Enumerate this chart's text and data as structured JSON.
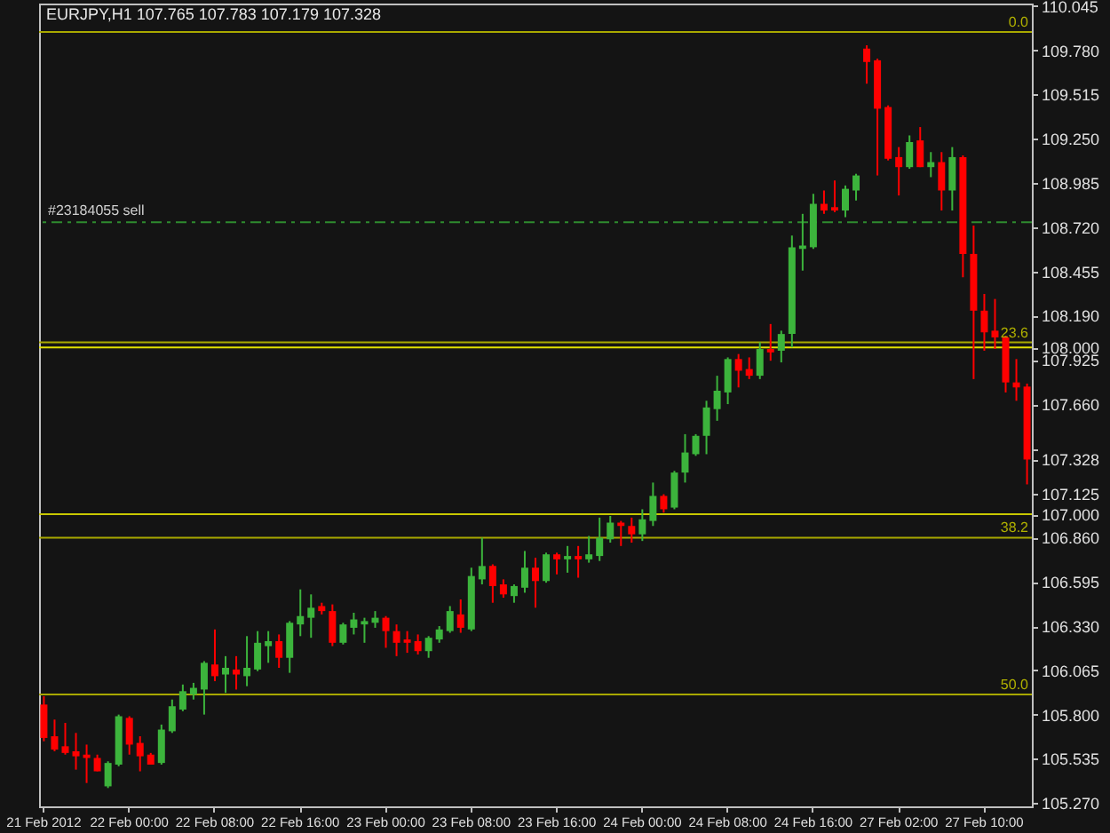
{
  "chart_data": {
    "type": "candlestick",
    "title": "EURJPY,H1  107.765 107.783 107.179 107.328",
    "categories": [
      "21 Feb 2012",
      null,
      null,
      null,
      null,
      null,
      null,
      null,
      "22 Feb 00:00",
      null,
      null,
      null,
      null,
      null,
      null,
      null,
      "22 Feb 08:00",
      null,
      null,
      null,
      null,
      null,
      null,
      null,
      "22 Feb 16:00",
      null,
      null,
      null,
      null,
      null,
      null,
      null,
      "23 Feb 00:00",
      null,
      null,
      null,
      null,
      null,
      null,
      null,
      "23 Feb 08:00",
      null,
      null,
      null,
      null,
      null,
      null,
      null,
      "23 Feb 16:00",
      null,
      null,
      null,
      null,
      null,
      null,
      null,
      "24 Feb 00:00",
      null,
      null,
      null,
      null,
      null,
      null,
      null,
      "24 Feb 08:00",
      null,
      null,
      null,
      null,
      null,
      null,
      null,
      "24 Feb 16:00",
      null,
      null,
      null,
      null,
      null,
      null,
      null,
      "27 Feb 02:00",
      null,
      null,
      null,
      null,
      null,
      null,
      null,
      "27 Feb 10:00",
      null,
      null,
      null,
      null
    ],
    "ohlc": [
      [
        105.86,
        105.91,
        105.64,
        105.66
      ],
      [
        105.67,
        105.77,
        105.58,
        105.59
      ],
      [
        105.61,
        105.75,
        105.56,
        105.57
      ],
      [
        105.58,
        105.69,
        105.47,
        105.55
      ],
      [
        105.56,
        105.62,
        105.39,
        105.54
      ],
      [
        105.54,
        105.56,
        105.46,
        105.46
      ],
      [
        105.37,
        105.52,
        105.36,
        105.51
      ],
      [
        105.5,
        105.8,
        105.49,
        105.79
      ],
      [
        105.78,
        105.79,
        105.56,
        105.62
      ],
      [
        105.63,
        105.67,
        105.46,
        105.55
      ],
      [
        105.56,
        105.57,
        105.5,
        105.5
      ],
      [
        105.51,
        105.74,
        105.5,
        105.71
      ],
      [
        105.7,
        105.89,
        105.69,
        105.85
      ],
      [
        105.83,
        105.98,
        105.82,
        105.94
      ],
      [
        105.92,
        105.99,
        105.89,
        105.96
      ],
      [
        105.95,
        106.12,
        105.8,
        106.11
      ],
      [
        106.1,
        106.31,
        106.0,
        106.03
      ],
      [
        106.04,
        106.15,
        105.93,
        106.08
      ],
      [
        106.07,
        106.15,
        105.95,
        106.04
      ],
      [
        106.03,
        106.27,
        105.97,
        106.08
      ],
      [
        106.07,
        106.3,
        106.06,
        106.23
      ],
      [
        106.21,
        106.3,
        106.11,
        106.24
      ],
      [
        106.24,
        106.28,
        106.08,
        106.14
      ],
      [
        106.14,
        106.36,
        106.05,
        106.35
      ],
      [
        106.34,
        106.55,
        106.27,
        106.39
      ],
      [
        106.38,
        106.52,
        106.26,
        106.44
      ],
      [
        106.45,
        106.47,
        106.4,
        106.42
      ],
      [
        106.42,
        106.46,
        106.21,
        106.23
      ],
      [
        106.23,
        106.35,
        106.22,
        106.34
      ],
      [
        106.32,
        106.41,
        106.28,
        106.37
      ],
      [
        106.34,
        106.38,
        106.23,
        106.36
      ],
      [
        106.35,
        106.42,
        106.32,
        106.38
      ],
      [
        106.38,
        106.39,
        106.2,
        106.3
      ],
      [
        106.3,
        106.34,
        106.15,
        106.23
      ],
      [
        106.25,
        106.3,
        106.17,
        106.23
      ],
      [
        106.24,
        106.28,
        106.16,
        106.18
      ],
      [
        106.18,
        106.27,
        106.14,
        106.26
      ],
      [
        106.25,
        106.33,
        106.23,
        106.31
      ],
      [
        106.3,
        106.45,
        106.29,
        106.42
      ],
      [
        106.4,
        106.49,
        106.29,
        106.32
      ],
      [
        106.31,
        106.68,
        106.3,
        106.63
      ],
      [
        106.61,
        106.86,
        106.58,
        106.69
      ],
      [
        106.69,
        106.7,
        106.47,
        106.57
      ],
      [
        106.58,
        106.61,
        106.5,
        106.52
      ],
      [
        106.51,
        106.58,
        106.47,
        106.57
      ],
      [
        106.56,
        106.78,
        106.53,
        106.68
      ],
      [
        106.68,
        106.74,
        106.44,
        106.6
      ],
      [
        106.6,
        106.77,
        106.59,
        106.76
      ],
      [
        106.76,
        106.77,
        106.64,
        106.73
      ],
      [
        106.73,
        106.81,
        106.65,
        106.75
      ],
      [
        106.75,
        106.81,
        106.62,
        106.73
      ],
      [
        106.73,
        106.87,
        106.71,
        106.76
      ],
      [
        106.75,
        106.98,
        106.72,
        106.86
      ],
      [
        106.85,
        106.99,
        106.83,
        106.95
      ],
      [
        106.95,
        106.96,
        106.81,
        106.93
      ],
      [
        106.93,
        106.98,
        106.83,
        106.88
      ],
      [
        106.88,
        107.03,
        106.84,
        106.97
      ],
      [
        106.96,
        107.19,
        106.93,
        107.11
      ],
      [
        107.11,
        107.12,
        107.01,
        107.03
      ],
      [
        107.04,
        107.26,
        107.03,
        107.25
      ],
      [
        107.25,
        107.48,
        107.19,
        107.37
      ],
      [
        107.36,
        107.48,
        107.35,
        107.47
      ],
      [
        107.47,
        107.68,
        107.36,
        107.64
      ],
      [
        107.63,
        107.83,
        107.56,
        107.74
      ],
      [
        107.73,
        107.94,
        107.66,
        107.93
      ],
      [
        107.93,
        107.96,
        107.76,
        107.86
      ],
      [
        107.87,
        107.94,
        107.81,
        107.83
      ],
      [
        107.83,
        108.03,
        107.81,
        107.99
      ],
      [
        107.99,
        108.14,
        107.92,
        107.97
      ],
      [
        107.98,
        108.1,
        107.91,
        108.08
      ],
      [
        108.08,
        108.67,
        108.0,
        108.6
      ],
      [
        108.59,
        108.8,
        108.46,
        108.61
      ],
      [
        108.6,
        108.92,
        108.59,
        108.86
      ],
      [
        108.86,
        108.94,
        108.8,
        108.82
      ],
      [
        108.84,
        109.0,
        108.81,
        108.82
      ],
      [
        108.82,
        108.97,
        108.78,
        108.95
      ],
      [
        108.94,
        109.04,
        108.88,
        109.03
      ],
      [
        109.79,
        109.81,
        109.58,
        109.71
      ],
      [
        109.72,
        109.73,
        109.03,
        109.43
      ],
      [
        109.44,
        109.45,
        109.12,
        109.13
      ],
      [
        109.14,
        109.2,
        108.91,
        109.08
      ],
      [
        109.08,
        109.27,
        109.07,
        109.23
      ],
      [
        109.24,
        109.32,
        109.08,
        109.08
      ],
      [
        109.08,
        109.17,
        109.02,
        109.11
      ],
      [
        109.11,
        109.17,
        108.82,
        108.94
      ],
      [
        108.94,
        109.2,
        108.82,
        109.14
      ],
      [
        109.14,
        109.15,
        108.42,
        108.56
      ],
      [
        108.56,
        108.73,
        107.81,
        108.22
      ],
      [
        108.22,
        108.32,
        107.98,
        108.09
      ],
      [
        108.1,
        108.29,
        107.99,
        108.06
      ],
      [
        108.06,
        108.07,
        107.73,
        107.79
      ],
      [
        107.79,
        107.93,
        107.68,
        107.76
      ],
      [
        107.765,
        107.783,
        107.179,
        107.328
      ]
    ],
    "colors": [
      "#ff0000",
      "#ff0000",
      "#ff0000",
      "#ff0000",
      "#ff0000",
      "#ff0000",
      "#3cb43c",
      "#3cb43c",
      "#ff0000",
      "#ff0000",
      "#ff0000",
      "#3cb43c",
      "#3cb43c",
      "#3cb43c",
      "#3cb43c",
      "#3cb43c",
      "#ff0000",
      "#3cb43c",
      "#ff0000",
      "#3cb43c",
      "#3cb43c",
      "#3cb43c",
      "#ff0000",
      "#3cb43c",
      "#3cb43c",
      "#3cb43c",
      "#ff0000",
      "#ff0000",
      "#3cb43c",
      "#3cb43c",
      "#3cb43c",
      "#3cb43c",
      "#ff0000",
      "#ff0000",
      "#ff0000",
      "#ff0000",
      "#3cb43c",
      "#3cb43c",
      "#3cb43c",
      "#ff0000",
      "#3cb43c",
      "#3cb43c",
      "#ff0000",
      "#ff0000",
      "#3cb43c",
      "#3cb43c",
      "#ff0000",
      "#3cb43c",
      "#ff0000",
      "#3cb43c",
      "#ff0000",
      "#3cb43c",
      "#3cb43c",
      "#3cb43c",
      "#ff0000",
      "#ff0000",
      "#3cb43c",
      "#3cb43c",
      "#ff0000",
      "#3cb43c",
      "#3cb43c",
      "#3cb43c",
      "#3cb43c",
      "#3cb43c",
      "#3cb43c",
      "#ff0000",
      "#ff0000",
      "#3cb43c",
      "#ff0000",
      "#3cb43c",
      "#3cb43c",
      "#3cb43c",
      "#3cb43c",
      "#ff0000",
      "#ff0000",
      "#3cb43c",
      "#3cb43c",
      "#ff0000",
      "#ff0000",
      "#ff0000",
      "#ff0000",
      "#3cb43c",
      "#ff0000",
      "#3cb43c",
      "#ff0000",
      "#3cb43c",
      "#ff0000",
      "#ff0000",
      "#ff0000",
      "#ff0000",
      "#ff0000",
      "#ff0000",
      "#ff0000"
    ],
    "ylim": [
      105.25,
      110.06
    ],
    "yticks": [
      110.045,
      {
        "value": 109.78,
        "label": "109.780"
      },
      109.515,
      {
        "value": 109.25,
        "label": "109.250"
      },
      108.985,
      {
        "value": 108.72,
        "label": "108.720"
      },
      108.455,
      {
        "value": 108.19,
        "label": "108.190"
      },
      {
        "value": 108,
        "label": "108.000"
      },
      107.925,
      {
        "value": 107.66,
        "label": "107.660"
      },
      {
        "value": 107.39,
        "label": null
      },
      107.328,
      107.125,
      {
        "value": 107,
        "label": "107.000"
      },
      {
        "value": 106.86,
        "label": "106.860"
      },
      106.595,
      {
        "value": 106.33,
        "label": "106.330"
      },
      106.065,
      {
        "value": 105.8,
        "label": "105.800"
      },
      105.535,
      {
        "value": 105.27,
        "label": "105.270"
      }
    ],
    "ref_lines": [
      {
        "axis": "y",
        "value": 109.89,
        "color": "#a8a800"
      },
      {
        "axis": "y",
        "value": 108.03,
        "color": "#a8a800"
      },
      {
        "axis": "y",
        "value": 106.86,
        "color": "#a8a800"
      },
      {
        "axis": "y",
        "value": 105.92,
        "color": "#a8a800"
      },
      {
        "axis": "y",
        "value": 108,
        "color": "#e0e000"
      },
      {
        "axis": "y",
        "value": 107,
        "color": "#c8c800"
      },
      {
        "axis": "y",
        "value": 108.75,
        "label": "#23184055 sell",
        "color": "#2e8b2e",
        "line_style": "dashed"
      }
    ],
    "annotations": [
      {
        "text": "0.0",
        "y": 109.89
      },
      {
        "text": "23.6",
        "y": 108.03
      },
      {
        "text": "38.2",
        "y": 106.86
      },
      {
        "text": "50.0",
        "y": 105.92
      }
    ]
  }
}
